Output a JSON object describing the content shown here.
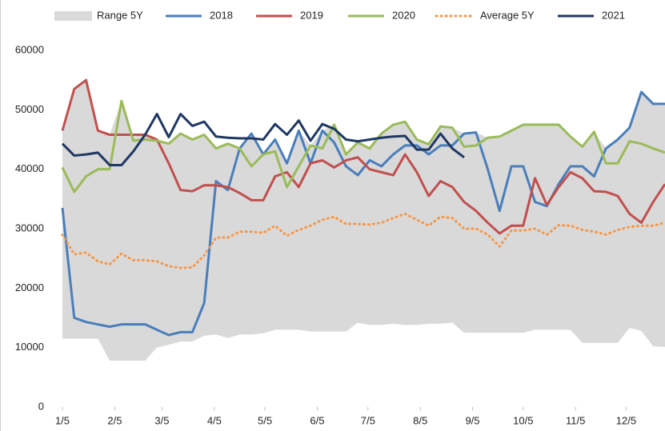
{
  "chart_data": {
    "type": "line",
    "x": [
      1,
      2,
      3,
      4,
      5,
      6,
      7,
      8,
      9,
      10,
      11,
      12,
      13,
      14,
      15,
      16,
      17,
      18,
      19,
      20,
      21,
      22,
      23,
      24,
      25,
      26,
      27,
      28,
      29,
      30,
      31,
      32,
      33,
      34,
      35,
      36,
      37,
      38,
      39,
      40,
      41,
      42,
      43,
      44,
      45,
      46,
      47,
      48,
      49,
      50,
      51,
      52
    ],
    "xlim": [
      1,
      52
    ],
    "xticks": [
      {
        "value": 1,
        "label": "1/5"
      },
      {
        "value": 5.43,
        "label": "2/5"
      },
      {
        "value": 9.43,
        "label": "3/5"
      },
      {
        "value": 13.86,
        "label": "4/5"
      },
      {
        "value": 18.14,
        "label": "5/5"
      },
      {
        "value": 22.57,
        "label": "6/5"
      },
      {
        "value": 26.86,
        "label": "7/5"
      },
      {
        "value": 31.29,
        "label": "8/5"
      },
      {
        "value": 35.71,
        "label": "9/5"
      },
      {
        "value": 40,
        "label": "10/5"
      },
      {
        "value": 44.43,
        "label": "11/5"
      },
      {
        "value": 48.71,
        "label": "12/5"
      }
    ],
    "ylim": [
      0,
      60000
    ],
    "yticks": [
      0,
      10000,
      20000,
      30000,
      40000,
      50000,
      60000
    ],
    "grid": false,
    "legend": "top",
    "range": {
      "name": "Range 5Y",
      "color": "#d9d9d9",
      "low": [
        11500,
        11500,
        11500,
        11500,
        7800,
        7800,
        7800,
        7800,
        10000,
        10500,
        11000,
        11000,
        12000,
        12200,
        11600,
        12200,
        12200,
        12400,
        13000,
        13000,
        13000,
        12700,
        12700,
        12700,
        12700,
        14200,
        13800,
        13800,
        14000,
        13800,
        13800,
        14000,
        14000,
        14200,
        12500,
        12500,
        12500,
        12500,
        12500,
        12500,
        13000,
        13000,
        13000,
        13000,
        10800,
        10800,
        10800,
        10800,
        13300,
        12800,
        10200,
        10100
      ],
      "high": [
        46500,
        53500,
        55000,
        46500,
        45800,
        51500,
        45800,
        45800,
        45000,
        44300,
        46000,
        45000,
        45800,
        43500,
        44300,
        43500,
        46000,
        42500,
        45000,
        41000,
        46500,
        44000,
        46500,
        47500,
        42500,
        44500,
        43500,
        46000,
        47500,
        48000,
        45000,
        44200,
        47200,
        47000,
        46000,
        46200,
        45300,
        45500,
        46500,
        47500,
        47500,
        47500,
        47500,
        45500,
        43800,
        46300,
        43500,
        45000,
        47000,
        53000,
        51000,
        51000
      ]
    },
    "series": [
      {
        "name": "2018",
        "color": "#4a7ebb",
        "dash": "solid",
        "values": [
          33500,
          15000,
          14300,
          13900,
          13500,
          13900,
          13900,
          13900,
          13000,
          12100,
          12600,
          12600,
          17500,
          38000,
          36500,
          43500,
          46000,
          42500,
          45000,
          41000,
          46500,
          41000,
          46500,
          44500,
          40500,
          39000,
          41500,
          40500,
          42500,
          44000,
          44000,
          42500,
          44000,
          44000,
          46000,
          46200,
          40000,
          33000,
          40500,
          40500,
          34500,
          33800,
          37500,
          40500,
          40500,
          38800,
          43500,
          45000,
          47000,
          53000,
          51000,
          51000
        ]
      },
      {
        "name": "2019",
        "color": "#c0504d",
        "dash": "solid",
        "values": [
          46500,
          53500,
          55000,
          46500,
          45800,
          45800,
          45800,
          45800,
          45000,
          41000,
          36500,
          36300,
          37300,
          37300,
          37000,
          36000,
          34800,
          34800,
          38800,
          39500,
          37000,
          41000,
          41500,
          40300,
          41500,
          42000,
          40000,
          39500,
          39000,
          42500,
          39500,
          35500,
          38000,
          37000,
          34500,
          33000,
          31000,
          29200,
          30500,
          30500,
          38500,
          34000,
          37000,
          39500,
          38500,
          36300,
          36200,
          35500,
          32500,
          31000,
          34500,
          37500
        ]
      },
      {
        "name": "2020",
        "color": "#9bbb59",
        "dash": "solid",
        "values": [
          40300,
          36200,
          38800,
          40000,
          40000,
          51500,
          44800,
          45000,
          44800,
          44300,
          46000,
          45000,
          45800,
          43500,
          44300,
          43500,
          40500,
          42500,
          43000,
          37000,
          40500,
          44000,
          43500,
          47500,
          42500,
          44500,
          43500,
          46000,
          47500,
          48000,
          45000,
          44200,
          47200,
          47000,
          43800,
          44000,
          45300,
          45500,
          46500,
          47500,
          47500,
          47500,
          47500,
          45500,
          43800,
          46300,
          41000,
          41000,
          44700,
          44300,
          43500,
          42800
        ]
      },
      {
        "name": "Average 5Y",
        "color": "#f79646",
        "dash": "dotted",
        "values": [
          29000,
          25700,
          26000,
          24500,
          24000,
          25800,
          24700,
          24700,
          24500,
          23700,
          23400,
          23500,
          25500,
          28500,
          28500,
          29500,
          29500,
          29300,
          30500,
          28800,
          29800,
          30500,
          31500,
          32000,
          30800,
          30800,
          30700,
          31000,
          31800,
          32500,
          31500,
          30500,
          32000,
          31800,
          30000,
          30000,
          29000,
          27000,
          29700,
          29700,
          30000,
          29000,
          30600,
          30500,
          29800,
          29500,
          29000,
          29800,
          30300,
          30500,
          30500,
          31000
        ]
      },
      {
        "name": "2021",
        "color": "#1f3864",
        "dash": "solid",
        "values": [
          44300,
          42300,
          42500,
          42800,
          40700,
          40700,
          43000,
          45800,
          49300,
          45400,
          49300,
          47300,
          48000,
          45500,
          45300,
          45200,
          45200,
          45000,
          47600,
          45800,
          48200,
          44800,
          47600,
          46800,
          45000,
          44700,
          45000,
          45300,
          45500,
          45600,
          43300,
          43300,
          46000,
          43500,
          42000,
          null,
          null,
          null,
          null,
          null,
          null,
          null,
          null,
          null,
          null,
          null,
          null,
          null,
          null,
          null,
          null,
          null
        ]
      }
    ]
  }
}
